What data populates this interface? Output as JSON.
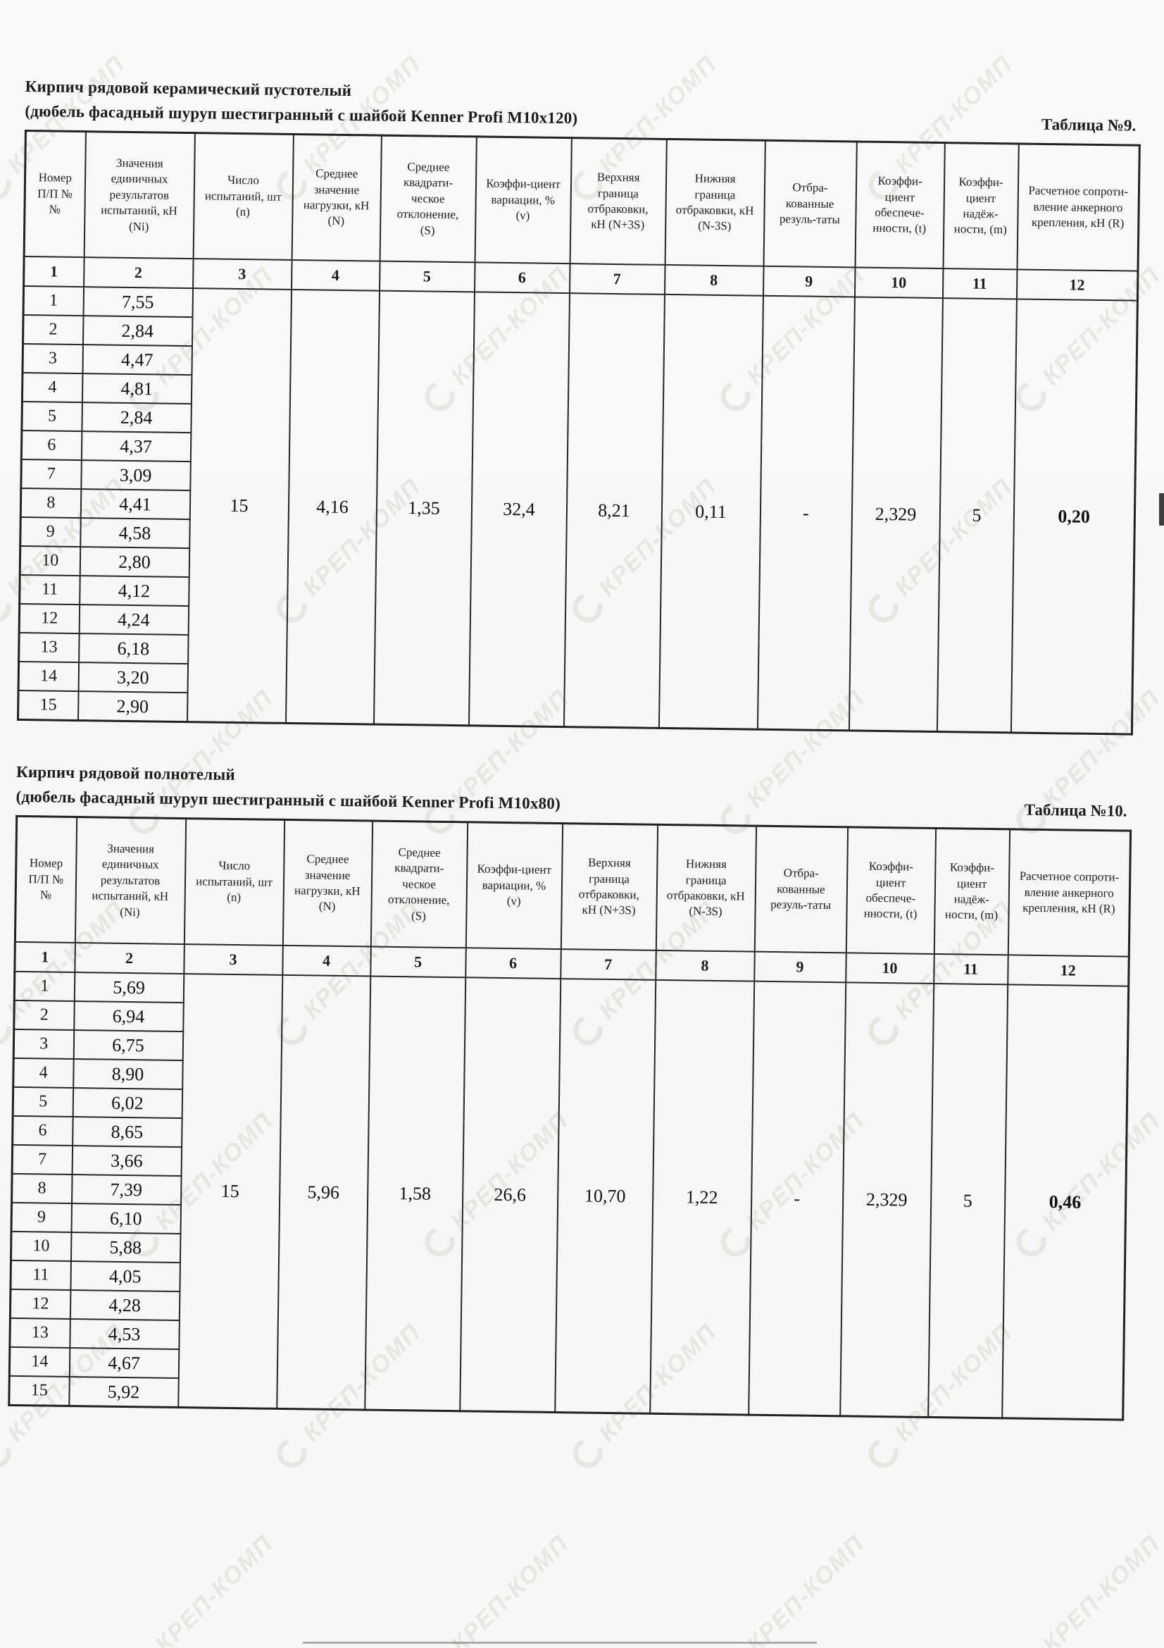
{
  "watermark": {
    "text": "КРЕП-КОМП"
  },
  "tables": [
    {
      "title_line1": "Кирпич рядовой керамический пустотелый",
      "title_line2": "(дюбель фасадный шуруп шестигранный с шайбой Kenner Profi M10x120)",
      "label": "Таблица №9.",
      "headers": [
        "Номер П/П №№",
        "Значения единичных результатов испытаний, кН (Ni)",
        "Число испытаний, шт (n)",
        "Среднее значение нагрузки, кН (N)",
        "Среднее квадрати-ческое отклонение, (S)",
        "Коэффи-циент вариации, % (v)",
        "Верхняя граница отбраковки, кН (N+3S)",
        "Нижняя граница отбраковки, кН (N-3S)",
        "Отбра-кованные резуль-таты",
        "Коэффи-циент обеспече-нности, (t)",
        "Коэффи-циент надёж-ности, (m)",
        "Расчетное сопроти-вление анкерного крепления, кН (R)"
      ],
      "col_numbers": [
        "1",
        "2",
        "3",
        "4",
        "5",
        "6",
        "7",
        "8",
        "9",
        "10",
        "11",
        "12"
      ],
      "rows": [
        {
          "num": "1",
          "value": "7,55"
        },
        {
          "num": "2",
          "value": "2,84"
        },
        {
          "num": "3",
          "value": "4,47"
        },
        {
          "num": "4",
          "value": "4,81"
        },
        {
          "num": "5",
          "value": "2,84"
        },
        {
          "num": "6",
          "value": "4,37"
        },
        {
          "num": "7",
          "value": "3,09"
        },
        {
          "num": "8",
          "value": "4,41"
        },
        {
          "num": "9",
          "value": "4,58"
        },
        {
          "num": "10",
          "value": "2,80"
        },
        {
          "num": "11",
          "value": "4,12"
        },
        {
          "num": "12",
          "value": "4,24"
        },
        {
          "num": "13",
          "value": "6,18"
        },
        {
          "num": "14",
          "value": "3,20"
        },
        {
          "num": "15",
          "value": "2,90"
        }
      ],
      "summary": {
        "n": "15",
        "mean": "4,16",
        "s": "1,35",
        "v": "32,4",
        "upper": "8,21",
        "lower": "0,11",
        "rejected": "-",
        "t": "2,329",
        "m": "5",
        "r": "0,20"
      }
    },
    {
      "title_line1": "Кирпич рядовой полнотелый",
      "title_line2": "(дюбель фасадный шуруп шестигранный с шайбой Kenner Profi M10x80)",
      "label": "Таблица №10.",
      "headers": [
        "Номер П/П №№",
        "Значения единичных результатов испытаний, кН (Ni)",
        "Число испытаний, шт (n)",
        "Среднее значение нагрузки, кН (N)",
        "Среднее квадрати-ческое отклонение, (S)",
        "Коэффи-циент вариации, % (v)",
        "Верхняя граница отбраковки, кН (N+3S)",
        "Нижняя граница отбраковки, кН (N-3S)",
        "Отбра-кованные резуль-таты",
        "Коэффи-циент обеспече-нности, (t)",
        "Коэффи-циент надёж-ности, (m)",
        "Расчетное сопроти-вление анкерного крепления, кН (R)"
      ],
      "col_numbers": [
        "1",
        "2",
        "3",
        "4",
        "5",
        "6",
        "7",
        "8",
        "9",
        "10",
        "11",
        "12"
      ],
      "rows": [
        {
          "num": "1",
          "value": "5,69"
        },
        {
          "num": "2",
          "value": "6,94"
        },
        {
          "num": "3",
          "value": "6,75"
        },
        {
          "num": "4",
          "value": "8,90"
        },
        {
          "num": "5",
          "value": "6,02"
        },
        {
          "num": "6",
          "value": "8,65"
        },
        {
          "num": "7",
          "value": "3,66"
        },
        {
          "num": "8",
          "value": "7,39"
        },
        {
          "num": "9",
          "value": "6,10"
        },
        {
          "num": "10",
          "value": "5,88"
        },
        {
          "num": "11",
          "value": "4,05"
        },
        {
          "num": "12",
          "value": "4,28"
        },
        {
          "num": "13",
          "value": "4,53"
        },
        {
          "num": "14",
          "value": "4,67"
        },
        {
          "num": "15",
          "value": "5,92"
        }
      ],
      "summary": {
        "n": "15",
        "mean": "5,96",
        "s": "1,58",
        "v": "26,6",
        "upper": "10,70",
        "lower": "1,22",
        "rejected": "-",
        "t": "2,329",
        "m": "5",
        "r": "0,46"
      }
    }
  ]
}
